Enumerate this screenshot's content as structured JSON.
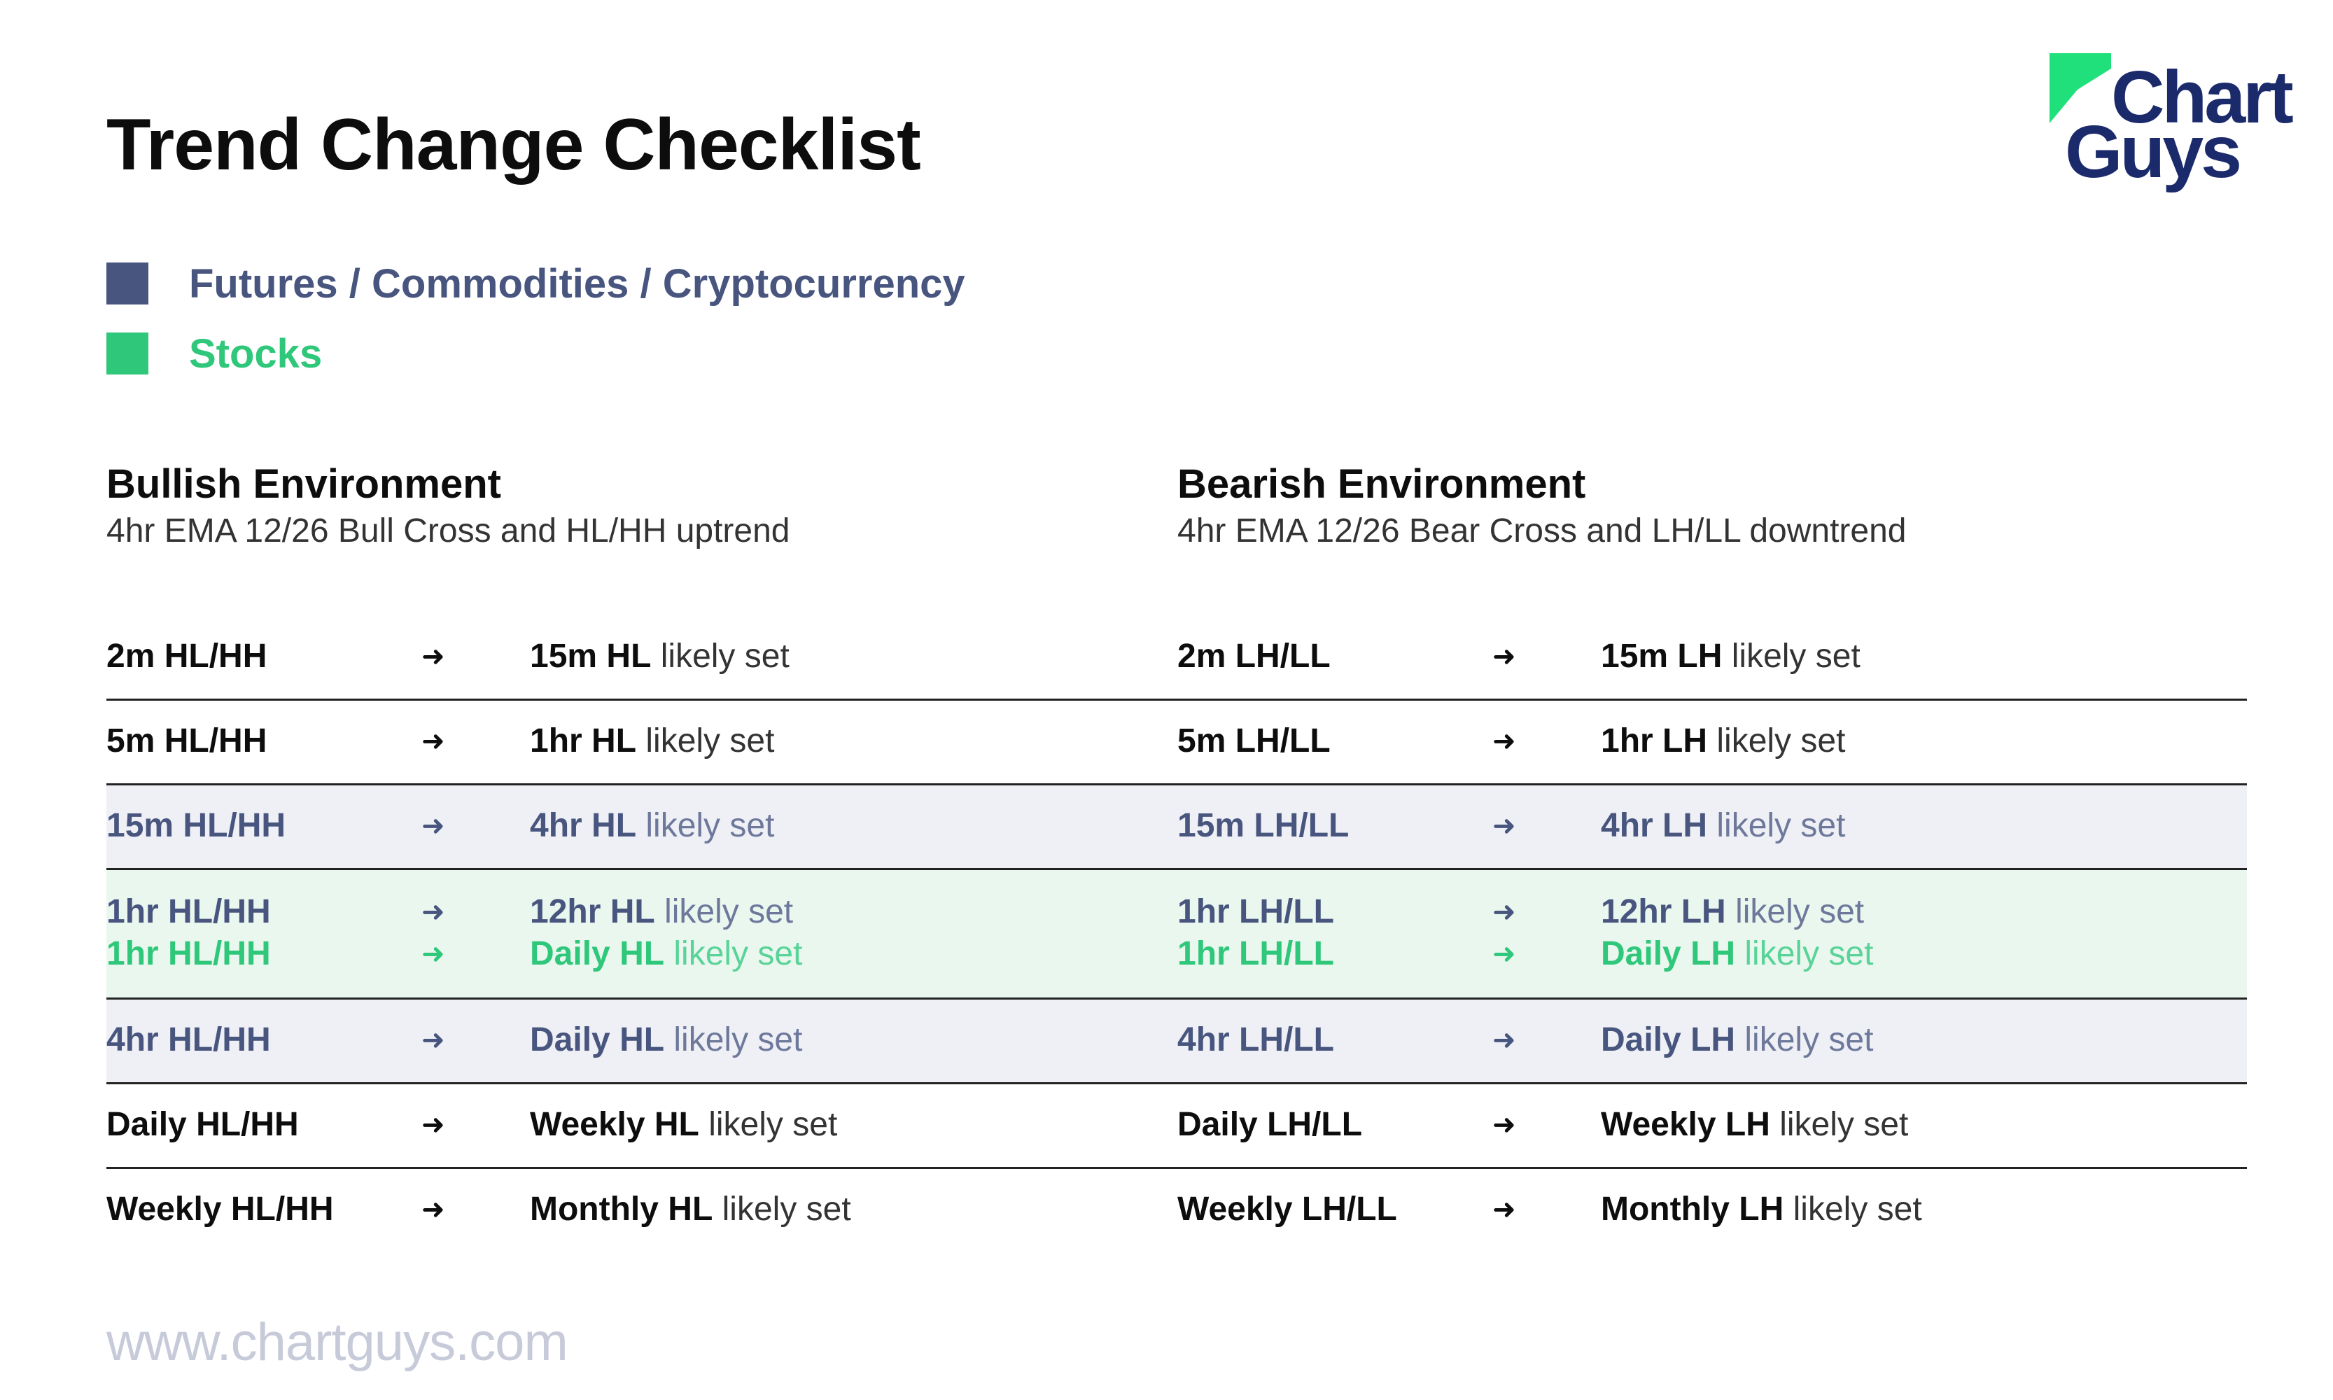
{
  "title": "Trend Change Checklist",
  "logo": {
    "line1": "Chart",
    "line2": "Guys",
    "color": "#1b2a6b",
    "mark_color": "#1fe07a"
  },
  "legend": [
    {
      "label": "Futures / Commodities / Cryptocurrency",
      "color": "#48557e"
    },
    {
      "label": "Stocks",
      "color": "#2fc77a"
    }
  ],
  "bullish": {
    "title": "Bullish Environment",
    "subtitle": "4hr EMA 12/26 Bull Cross and HL/HH uptrend"
  },
  "bearish": {
    "title": "Bearish Environment",
    "subtitle": "4hr EMA 12/26 Bear Cross and LH/LL downtrend"
  },
  "arrow": "➜",
  "suffix": "likely set",
  "rows": [
    {
      "l1": {
        "bull_from": "2m HL/HH",
        "bull_to": "15m HL",
        "bear_from": "2m LH/LL",
        "bear_to": "15m LH"
      }
    },
    {
      "l1": {
        "bull_from": "5m HL/HH",
        "bull_to": "1hr HL",
        "bear_from": "5m LH/LL",
        "bear_to": "1hr LH"
      }
    },
    {
      "l1": {
        "bull_from": "15m HL/HH",
        "bull_to": "4hr HL",
        "bear_from": "15m LH/LL",
        "bear_to": "4hr LH"
      }
    },
    {
      "l1": {
        "bull_from": "1hr HL/HH",
        "bull_to": "12hr HL",
        "bear_from": "1hr LH/LL",
        "bear_to": "12hr LH"
      },
      "l2": {
        "bull_from": "1hr HL/HH",
        "bull_to": "Daily HL",
        "bear_from": "1hr LH/LL",
        "bear_to": "Daily LH"
      }
    },
    {
      "l1": {
        "bull_from": "4hr HL/HH",
        "bull_to": "Daily HL",
        "bear_from": "4hr LH/LL",
        "bear_to": "Daily LH"
      }
    },
    {
      "l1": {
        "bull_from": "Daily HL/HH",
        "bull_to": "Weekly HL",
        "bear_from": "Daily LH/LL",
        "bear_to": "Weekly LH"
      }
    },
    {
      "l1": {
        "bull_from": "Weekly HL/HH",
        "bull_to": "Monthly HL",
        "bear_from": "Weekly LH/LL",
        "bear_to": "Monthly LH"
      }
    }
  ],
  "footer": "www.chartguys.com"
}
